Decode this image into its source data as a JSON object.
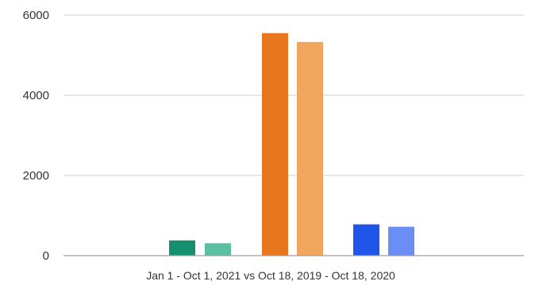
{
  "chart_data": {
    "type": "bar",
    "xlabel": "Jan 1 - Oct 1, 2021 vs Oct 18, 2019 - Oct 18, 2020",
    "ylim": [
      0,
      6000
    ],
    "yticks": [
      "0",
      "2000",
      "4000",
      "6000"
    ],
    "grid": true,
    "legend": "none",
    "series": [
      {
        "values": [
          380
        ],
        "color": "#148f70"
      },
      {
        "values": [
          310
        ],
        "color": "#5dbfa2"
      },
      {
        "values": [
          5550
        ],
        "color": "#e8761e"
      },
      {
        "values": [
          5330
        ],
        "color": "#f2a55d"
      },
      {
        "values": [
          780
        ],
        "color": "#1f55e8"
      },
      {
        "values": [
          720
        ],
        "color": "#6a8ef5"
      }
    ]
  }
}
